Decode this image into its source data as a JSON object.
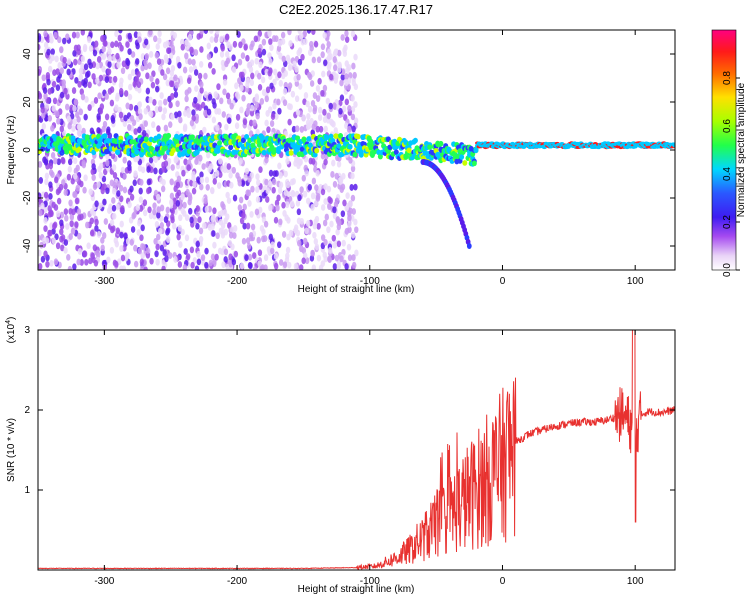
{
  "title": "C2E2.2025.136.17.47.R17",
  "colors": {
    "snr_line": "#e8312f",
    "grid": "#cccccc",
    "axis": "#000000"
  },
  "chart_data": [
    {
      "type": "heatmap",
      "name": "spectrogram",
      "xlabel": "Height of straight line (km)",
      "ylabel": "Frequency (Hz)",
      "xlim": [
        -350,
        130
      ],
      "ylim": [
        -50,
        50
      ],
      "x_ticks": [
        -300,
        -200,
        -100,
        0,
        100
      ],
      "y_ticks": [
        -40,
        -20,
        0,
        20,
        40
      ],
      "colorbar": {
        "label": "Normalized spectral amplitude",
        "range": [
          0,
          1
        ],
        "ticks": [
          "0.0",
          "0.2",
          "0.4",
          "0.6",
          "0.8"
        ],
        "colormap": "white-violet-blue-cyan-green-yellow-red-magenta"
      },
      "features": [
        {
          "desc": "noise speckle",
          "x": [
            -350,
            -110
          ],
          "freq": [
            -50,
            50
          ],
          "amplitude": [
            0.02,
            0.2
          ]
        },
        {
          "desc": "main carrier line",
          "x": [
            -350,
            130
          ],
          "freq": 2,
          "amplitude": [
            0.3,
            0.9
          ]
        },
        {
          "desc": "descending branch",
          "x": [
            -60,
            -25
          ],
          "freq": [
            -5,
            -40
          ],
          "amplitude": [
            0.2,
            0.3
          ]
        }
      ]
    },
    {
      "type": "line",
      "name": "snr",
      "xlabel": "Height of straight line (km)",
      "ylabel": "SNR (10 * v/v)",
      "y_scale_label": "(x10",
      "y_scale_exp": "4",
      "y_scale_close": ")",
      "xlim": [
        -350,
        130
      ],
      "ylim": [
        0,
        3
      ],
      "x_ticks": [
        -300,
        -200,
        -100,
        0,
        100
      ],
      "y_ticks": [
        1,
        2,
        3
      ],
      "series": [
        {
          "x": [
            -350,
            -300,
            -250,
            -200,
            -150,
            -110,
            -95,
            -80,
            -70,
            -60,
            -50,
            -40,
            -30,
            -20,
            -10,
            0,
            10,
            20,
            30,
            40,
            50,
            60,
            70,
            80,
            90,
            95,
            100,
            105,
            110,
            120,
            130
          ],
          "y": [
            0.02,
            0.02,
            0.02,
            0.02,
            0.02,
            0.03,
            0.05,
            0.15,
            0.25,
            0.4,
            0.55,
            0.7,
            0.85,
            1.0,
            1.15,
            1.3,
            1.6,
            1.7,
            1.75,
            1.8,
            1.83,
            1.85,
            1.85,
            1.88,
            1.95,
            1.85,
            1.7,
            1.95,
            1.98,
            1.97,
            2.0
          ]
        }
      ]
    }
  ]
}
